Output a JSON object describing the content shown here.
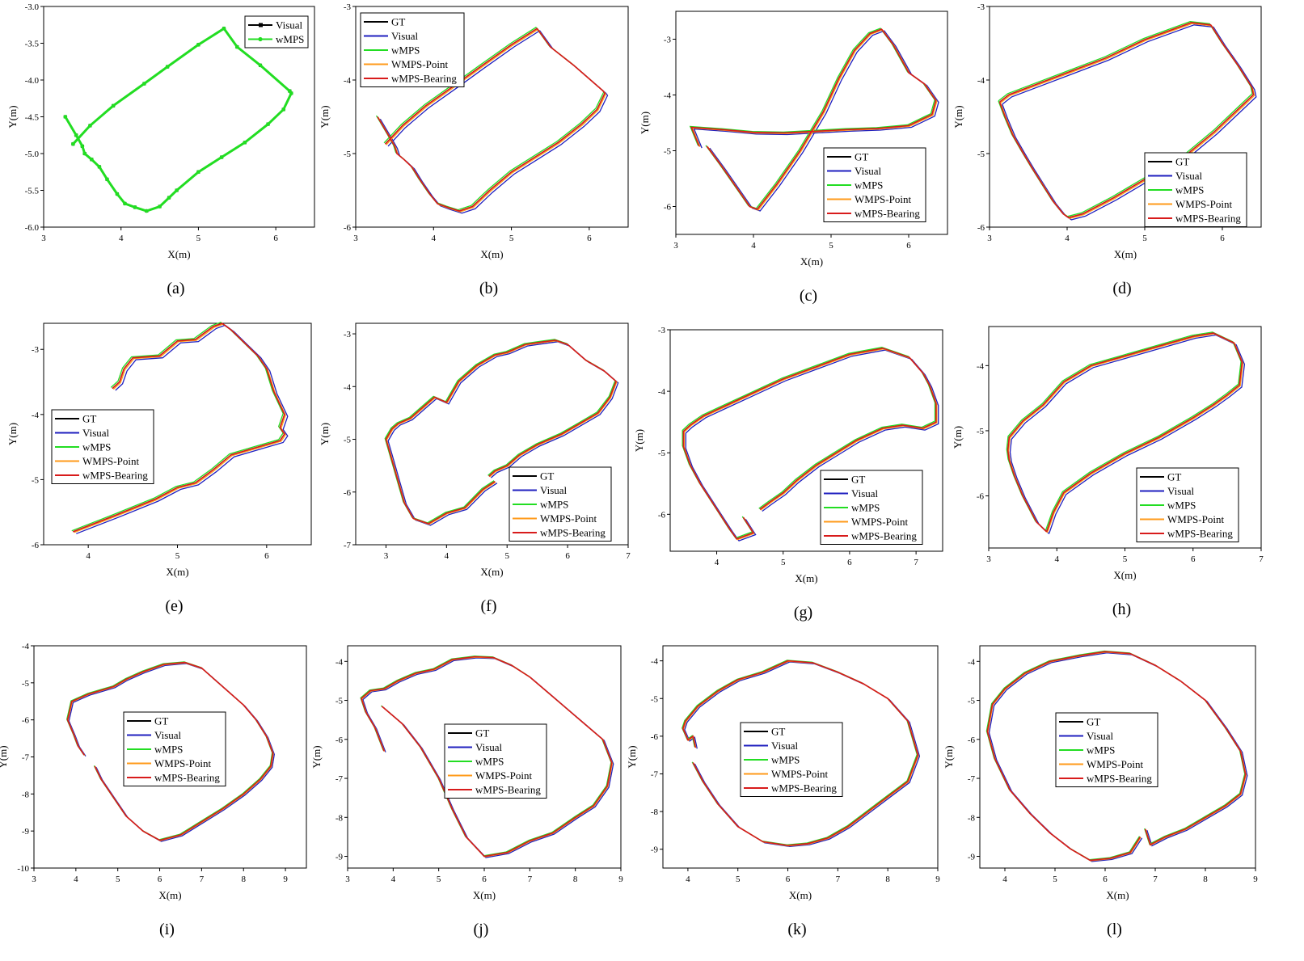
{
  "colors": {
    "GT": "#000000",
    "Visual": "#1f1fbf",
    "wMPS": "#22dd22",
    "WMPS-Point": "#ff9a1a",
    "wMPS-Bearing": "#d81b1b"
  },
  "chart_data": [
    {
      "type": "line",
      "label": "(a)",
      "xlabel": "X(m)",
      "ylabel": "Y(m)",
      "xlim": [
        3,
        6.5
      ],
      "ylim": [
        -6.0,
        -3.0
      ],
      "xticks": [
        "3",
        "4",
        "5",
        "6"
      ],
      "yticks": [
        "-3.0",
        "-3.5",
        "-4.0",
        "-4.5",
        "-5.0",
        "-5.5",
        "-6.0"
      ],
      "legend": [
        "Visual",
        "wMPS"
      ],
      "series": [
        {
          "name": "Visual",
          "color": "#000000",
          "marker": "square",
          "x": [
            3.28,
            3.42,
            3.5,
            3.53,
            3.62,
            3.72,
            3.82,
            3.95,
            4.05,
            4.18,
            4.33,
            4.5,
            4.62,
            4.72,
            5.0,
            5.3,
            5.6,
            5.9,
            6.1,
            6.2,
            6.18,
            5.8,
            5.5,
            5.33,
            5.0,
            4.6,
            4.3,
            3.9,
            3.6,
            3.38
          ],
          "y": [
            -4.5,
            -4.75,
            -4.9,
            -5.0,
            -5.08,
            -5.18,
            -5.35,
            -5.55,
            -5.68,
            -5.73,
            -5.78,
            -5.72,
            -5.6,
            -5.5,
            -5.25,
            -5.05,
            -4.85,
            -4.6,
            -4.4,
            -4.18,
            -4.15,
            -3.8,
            -3.55,
            -3.3,
            -3.52,
            -3.82,
            -4.05,
            -4.35,
            -4.62,
            -4.87
          ]
        },
        {
          "name": "wMPS",
          "color": "#22dd22",
          "marker": "circle",
          "x": [
            3.28,
            3.42,
            3.5,
            3.53,
            3.62,
            3.72,
            3.82,
            3.95,
            4.05,
            4.18,
            4.33,
            4.5,
            4.62,
            4.72,
            5.0,
            5.3,
            5.6,
            5.9,
            6.1,
            6.2,
            6.18,
            5.8,
            5.5,
            5.33,
            5.0,
            4.6,
            4.3,
            3.9,
            3.6,
            3.38
          ],
          "y": [
            -4.5,
            -4.75,
            -4.9,
            -5.0,
            -5.08,
            -5.18,
            -5.35,
            -5.55,
            -5.68,
            -5.73,
            -5.78,
            -5.72,
            -5.6,
            -5.5,
            -5.25,
            -5.05,
            -4.85,
            -4.6,
            -4.4,
            -4.18,
            -4.15,
            -3.8,
            -3.55,
            -3.3,
            -3.52,
            -3.82,
            -4.05,
            -4.35,
            -4.62,
            -4.87
          ]
        }
      ]
    },
    {
      "type": "line",
      "label": "(b)",
      "xlabel": "X(m)",
      "ylabel": "Y(m)",
      "xlim": [
        3,
        6.5
      ],
      "ylim": [
        -6,
        -3
      ],
      "xticks": [
        "3",
        "4",
        "5",
        "6"
      ],
      "yticks": [
        "-3",
        "-4",
        "-5",
        "-6"
      ],
      "legend": [
        "GT",
        "Visual",
        "wMPS",
        "WMPS-Point",
        "wMPS-Bearing"
      ],
      "x": [
        3.28,
        3.42,
        3.5,
        3.53,
        3.62,
        3.72,
        3.82,
        3.95,
        4.05,
        4.18,
        4.33,
        4.5,
        4.62,
        4.72,
        5.0,
        5.3,
        5.6,
        5.9,
        6.1,
        6.2,
        6.18,
        5.8,
        5.5,
        5.33,
        5.0,
        4.6,
        4.3,
        3.9,
        3.6,
        3.38
      ],
      "y": [
        -4.5,
        -4.75,
        -4.9,
        -5.0,
        -5.08,
        -5.18,
        -5.35,
        -5.55,
        -5.68,
        -5.73,
        -5.78,
        -5.72,
        -5.6,
        -5.5,
        -5.25,
        -5.05,
        -4.85,
        -4.6,
        -4.4,
        -4.18,
        -4.15,
        -3.8,
        -3.55,
        -3.3,
        -3.52,
        -3.82,
        -4.05,
        -4.35,
        -4.62,
        -4.87
      ]
    },
    {
      "type": "line",
      "label": "(c)",
      "xlabel": "X(m)",
      "ylabel": "Y(m)",
      "xlim": [
        3,
        6.5
      ],
      "ylim": [
        -6.5,
        -2.5
      ],
      "xticks": [
        "3",
        "4",
        "5",
        "6"
      ],
      "yticks": [
        "-3",
        "-4",
        "-5",
        "-6"
      ],
      "legend": [
        "GT",
        "Visual",
        "wMPS",
        "WMPS-Point",
        "wMPS-Bearing"
      ],
      "x": [
        3.4,
        3.6,
        3.8,
        3.95,
        4.05,
        4.3,
        4.6,
        4.9,
        5.1,
        5.3,
        5.5,
        5.65,
        5.8,
        6.0,
        6.2,
        6.35,
        6.3,
        6.0,
        5.6,
        5.2,
        4.8,
        4.4,
        4.0,
        3.6,
        3.2,
        3.3
      ],
      "y": [
        -4.92,
        -5.3,
        -5.7,
        -6.0,
        -6.05,
        -5.6,
        -5.0,
        -4.3,
        -3.7,
        -3.2,
        -2.9,
        -2.82,
        -3.1,
        -3.6,
        -3.8,
        -4.1,
        -4.35,
        -4.55,
        -4.6,
        -4.62,
        -4.65,
        -4.68,
        -4.67,
        -4.62,
        -4.58,
        -4.92
      ]
    },
    {
      "type": "line",
      "label": "(d)",
      "xlabel": "X(m)",
      "ylabel": "Y(m)",
      "xlim": [
        3,
        6.5
      ],
      "ylim": [
        -6,
        -3
      ],
      "xticks": [
        "3",
        "4",
        "5",
        "6"
      ],
      "yticks": [
        "-3",
        "-4",
        "-5",
        "-6"
      ],
      "legend": [
        "GT",
        "Visual",
        "wMPS",
        "WMPS-Point",
        "wMPS-Bearing"
      ],
      "x": [
        3.13,
        3.2,
        3.3,
        3.42,
        3.55,
        3.7,
        3.82,
        3.95,
        4.02,
        4.2,
        4.6,
        5.0,
        5.5,
        5.9,
        6.2,
        6.4,
        6.38,
        6.2,
        6.0,
        5.85,
        5.6,
        5.0,
        4.5,
        4.0,
        3.5,
        3.25,
        3.13
      ],
      "y": [
        -4.3,
        -4.5,
        -4.75,
        -4.97,
        -5.2,
        -5.45,
        -5.65,
        -5.82,
        -5.87,
        -5.82,
        -5.6,
        -5.35,
        -5.05,
        -4.7,
        -4.4,
        -4.2,
        -4.1,
        -3.8,
        -3.5,
        -3.25,
        -3.22,
        -3.45,
        -3.7,
        -3.9,
        -4.1,
        -4.2,
        -4.3
      ]
    },
    {
      "type": "line",
      "label": "(e)",
      "xlabel": "X(m)",
      "ylabel": "Y(m)",
      "xlim": [
        3.5,
        6.5
      ],
      "ylim": [
        -6,
        -2.6
      ],
      "xticks": [
        "4",
        "5",
        "6"
      ],
      "yticks": [
        "-3",
        "-4",
        "-5",
        "-6"
      ],
      "legend": [
        "GT",
        "Visual",
        "wMPS",
        "WMPS-Point",
        "wMPS-Bearing"
      ],
      "x": [
        3.83,
        4.3,
        4.75,
        5.0,
        5.2,
        5.4,
        5.6,
        5.9,
        6.15,
        6.2,
        6.15,
        6.2,
        6.08,
        6.0,
        5.9,
        5.75,
        5.6,
        5.5,
        5.4,
        5.2,
        5.0,
        4.8,
        4.5,
        4.4,
        4.35,
        4.27
      ],
      "y": [
        -5.8,
        -5.55,
        -5.3,
        -5.12,
        -5.05,
        -4.85,
        -4.62,
        -4.5,
        -4.4,
        -4.3,
        -4.2,
        -4.0,
        -3.65,
        -3.3,
        -3.1,
        -2.9,
        -2.7,
        -2.6,
        -2.65,
        -2.85,
        -2.87,
        -3.1,
        -3.13,
        -3.3,
        -3.5,
        -3.6
      ]
    },
    {
      "type": "line",
      "label": "(f)",
      "xlabel": "X(m)",
      "ylabel": "Y(m)",
      "xlim": [
        2.5,
        7
      ],
      "ylim": [
        -7,
        -2.8
      ],
      "xticks": [
        "3",
        "4",
        "5",
        "6",
        "7"
      ],
      "yticks": [
        "-3",
        "-4",
        "-5",
        "-6",
        "-7"
      ],
      "legend": [
        "GT",
        "Visual",
        "wMPS",
        "WMPS-Point",
        "wMPS-Bearing"
      ],
      "x": [
        4.8,
        4.6,
        4.3,
        4.0,
        3.7,
        3.45,
        3.3,
        3.2,
        3.1,
        3.0,
        3.1,
        3.2,
        3.4,
        3.6,
        3.8,
        4.0,
        4.2,
        4.5,
        4.8,
        5.0,
        5.3,
        5.6,
        5.8,
        6.0,
        6.3,
        6.6,
        6.8,
        6.7,
        6.5,
        6.2,
        5.9,
        5.5,
        5.2,
        5.0,
        4.8,
        4.7
      ],
      "y": [
        -5.8,
        -5.95,
        -6.3,
        -6.4,
        -6.6,
        -6.5,
        -6.2,
        -5.8,
        -5.4,
        -5.0,
        -4.8,
        -4.7,
        -4.6,
        -4.4,
        -4.2,
        -4.3,
        -3.9,
        -3.6,
        -3.4,
        -3.35,
        -3.2,
        -3.15,
        -3.12,
        -3.2,
        -3.5,
        -3.7,
        -3.9,
        -4.2,
        -4.5,
        -4.7,
        -4.9,
        -5.1,
        -5.3,
        -5.5,
        -5.6,
        -5.7
      ]
    },
    {
      "type": "line",
      "label": "(g)",
      "xlabel": "X(m)",
      "ylabel": "Y(m)",
      "xlim": [
        3.3,
        7.4
      ],
      "ylim": [
        -6.6,
        -3
      ],
      "xticks": [
        "4",
        "5",
        "6",
        "7"
      ],
      "yticks": [
        "-3",
        "-4",
        "-5",
        "-6"
      ],
      "legend": [
        "GT",
        "Visual",
        "wMPS",
        "WMPS-Point",
        "wMPS-Bearing"
      ],
      "x": [
        4.4,
        4.55,
        4.3,
        4.2,
        4.05,
        3.9,
        3.75,
        3.6,
        3.5,
        3.5,
        3.6,
        3.8,
        4.1,
        4.5,
        5.0,
        5.5,
        6.0,
        6.5,
        6.9,
        7.1,
        7.2,
        7.3,
        7.3,
        7.1,
        6.8,
        6.5,
        6.1,
        5.8,
        5.5,
        5.2,
        5.0,
        4.8,
        4.65
      ],
      "y": [
        -6.05,
        -6.3,
        -6.4,
        -6.25,
        -6.0,
        -5.75,
        -5.5,
        -5.2,
        -4.9,
        -4.65,
        -4.55,
        -4.4,
        -4.25,
        -4.05,
        -3.8,
        -3.6,
        -3.4,
        -3.3,
        -3.45,
        -3.7,
        -3.9,
        -4.2,
        -4.5,
        -4.6,
        -4.55,
        -4.6,
        -4.8,
        -5.0,
        -5.2,
        -5.45,
        -5.65,
        -5.8,
        -5.92
      ]
    },
    {
      "type": "line",
      "label": "(h)",
      "xlabel": "X(m)",
      "ylabel": "Y(m)",
      "xlim": [
        3,
        7
      ],
      "ylim": [
        -6.8,
        -3.4
      ],
      "xticks": [
        "3",
        "4",
        "5",
        "6",
        "7"
      ],
      "yticks": [
        "-4",
        "-5",
        "-6"
      ],
      "legend": [
        "GT",
        "Visual",
        "wMPS",
        "WMPS-Point",
        "wMPS-Bearing"
      ],
      "x": [
        3.85,
        3.7,
        3.5,
        3.38,
        3.3,
        3.28,
        3.3,
        3.5,
        3.8,
        4.1,
        4.5,
        5.0,
        5.5,
        6.0,
        6.3,
        6.6,
        6.72,
        6.68,
        6.5,
        6.3,
        6.0,
        5.5,
        5.0,
        4.5,
        4.1,
        3.95,
        3.85
      ],
      "y": [
        -6.55,
        -6.4,
        -6.0,
        -5.7,
        -5.45,
        -5.3,
        -5.1,
        -4.85,
        -4.6,
        -4.25,
        -4.0,
        -3.85,
        -3.7,
        -3.55,
        -3.5,
        -3.65,
        -3.95,
        -4.3,
        -4.45,
        -4.6,
        -4.8,
        -5.1,
        -5.35,
        -5.65,
        -5.95,
        -6.25,
        -6.55
      ]
    },
    {
      "type": "line",
      "label": "(i)",
      "xlabel": "X(m)",
      "ylabel": "Y(m)",
      "xlim": [
        3,
        9.5
      ],
      "ylim": [
        -10,
        -4
      ],
      "xticks": [
        "3",
        "4",
        "5",
        "6",
        "7",
        "8",
        "9"
      ],
      "yticks": [
        "-4",
        "-5",
        "-6",
        "-7",
        "-8",
        "-9",
        "-10"
      ],
      "legend": [
        "GT",
        "Visual",
        "wMPS",
        "WMPS-Point",
        "wMPS-Bearing"
      ],
      "x": [
        4.45,
        4.6,
        4.9,
        5.2,
        5.6,
        6.0,
        6.5,
        7.0,
        7.5,
        8.0,
        8.4,
        8.65,
        8.7,
        8.55,
        8.3,
        8.0,
        7.6,
        7.3,
        7.0,
        6.6,
        6.1,
        5.6,
        5.2,
        4.9,
        4.6,
        4.3,
        4.1,
        3.9,
        3.8,
        3.95,
        4.05,
        4.2
      ],
      "y": [
        -7.25,
        -7.6,
        -8.1,
        -8.6,
        -9.0,
        -9.25,
        -9.1,
        -8.75,
        -8.4,
        -8.0,
        -7.6,
        -7.25,
        -6.9,
        -6.45,
        -6.0,
        -5.6,
        -5.2,
        -4.9,
        -4.6,
        -4.45,
        -4.5,
        -4.7,
        -4.9,
        -5.1,
        -5.2,
        -5.3,
        -5.4,
        -5.5,
        -6.0,
        -6.4,
        -6.7,
        -6.95
      ]
    },
    {
      "type": "line",
      "label": "(j)",
      "xlabel": "X(m)",
      "ylabel": "Y(m)",
      "xlim": [
        3,
        9
      ],
      "ylim": [
        -9.3,
        -3.6
      ],
      "xticks": [
        "3",
        "4",
        "5",
        "6",
        "7",
        "8",
        "9"
      ],
      "yticks": [
        "-4",
        "-5",
        "-6",
        "-7",
        "-8",
        "-9"
      ],
      "legend": [
        "GT",
        "Visual",
        "wMPS",
        "WMPS-Point",
        "wMPS-Bearing"
      ],
      "x": [
        3.75,
        3.9,
        4.2,
        4.6,
        5.0,
        5.3,
        5.6,
        6.0,
        6.5,
        7.0,
        7.5,
        8.0,
        8.4,
        8.7,
        8.8,
        8.6,
        8.2,
        7.8,
        7.4,
        7.0,
        6.6,
        6.2,
        5.8,
        5.3,
        4.9,
        4.5,
        4.1,
        3.8,
        3.5,
        3.3,
        3.4,
        3.6,
        3.7,
        3.8
      ],
      "y": [
        -5.15,
        -5.3,
        -5.6,
        -6.2,
        -7.0,
        -7.8,
        -8.5,
        -9.0,
        -8.9,
        -8.6,
        -8.4,
        -8.0,
        -7.7,
        -7.2,
        -6.6,
        -6.0,
        -5.6,
        -5.2,
        -4.8,
        -4.4,
        -4.1,
        -3.9,
        -3.88,
        -3.95,
        -4.2,
        -4.3,
        -4.5,
        -4.7,
        -4.75,
        -4.95,
        -5.3,
        -5.7,
        -6.0,
        -6.3
      ]
    },
    {
      "type": "line",
      "label": "(k)",
      "xlabel": "X(m)",
      "ylabel": "Y(m)",
      "xlim": [
        3.5,
        9
      ],
      "ylim": [
        -9.5,
        -3.6
      ],
      "xticks": [
        "4",
        "5",
        "6",
        "7",
        "8",
        "9"
      ],
      "yticks": [
        "-4",
        "-5",
        "-6",
        "-7",
        "-8",
        "-9"
      ],
      "legend": [
        "GT",
        "Visual",
        "wMPS",
        "WMPS-Point",
        "wMPS-Bearing"
      ],
      "x": [
        4.15,
        4.1,
        4.0,
        3.9,
        3.95,
        4.2,
        4.6,
        5.0,
        5.5,
        6.0,
        6.5,
        7.0,
        7.5,
        8.0,
        8.4,
        8.6,
        8.4,
        8.0,
        7.6,
        7.2,
        6.8,
        6.4,
        6.0,
        5.5,
        5.0,
        4.6,
        4.3,
        4.1
      ],
      "y": [
        -6.3,
        -6.0,
        -6.1,
        -5.8,
        -5.6,
        -5.2,
        -4.8,
        -4.5,
        -4.3,
        -4.0,
        -4.05,
        -4.3,
        -4.6,
        -5.0,
        -5.6,
        -6.5,
        -7.2,
        -7.6,
        -8.0,
        -8.4,
        -8.7,
        -8.85,
        -8.9,
        -8.8,
        -8.4,
        -7.8,
        -7.2,
        -6.7
      ]
    },
    {
      "type": "line",
      "label": "(l)",
      "xlabel": "X(m)",
      "ylabel": "Y(m)",
      "xlim": [
        3.5,
        9
      ],
      "ylim": [
        -9.3,
        -3.6
      ],
      "xticks": [
        "4",
        "5",
        "6",
        "7",
        "8",
        "9"
      ],
      "yticks": [
        "-4",
        "-5",
        "-6",
        "-7",
        "-8",
        "-9"
      ],
      "legend": [
        "GT",
        "Visual",
        "wMPS",
        "WMPS-Point",
        "wMPS-Bearing"
      ],
      "x": [
        6.7,
        6.5,
        6.1,
        5.7,
        5.3,
        4.9,
        4.5,
        4.1,
        3.8,
        3.65,
        3.75,
        4.0,
        4.4,
        4.9,
        5.5,
        6.0,
        6.5,
        7.0,
        7.5,
        8.0,
        8.4,
        8.7,
        8.8,
        8.7,
        8.4,
        8.0,
        7.6,
        7.2,
        6.9,
        6.8
      ],
      "y": [
        -8.5,
        -8.9,
        -9.05,
        -9.1,
        -8.8,
        -8.4,
        -7.9,
        -7.3,
        -6.5,
        -5.8,
        -5.1,
        -4.7,
        -4.3,
        -4.0,
        -3.85,
        -3.75,
        -3.8,
        -4.1,
        -4.5,
        -5.0,
        -5.7,
        -6.3,
        -6.9,
        -7.4,
        -7.7,
        -8.0,
        -8.3,
        -8.5,
        -8.7,
        -8.3
      ]
    }
  ]
}
